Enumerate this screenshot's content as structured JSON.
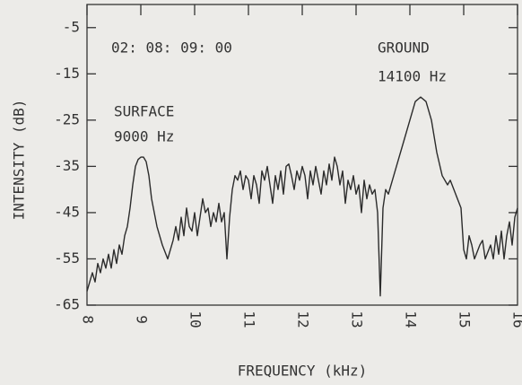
{
  "chart_data": {
    "type": "line",
    "xlabel": "FREQUENCY (kHz)",
    "ylabel": "INTENSITY (dB)",
    "annotations": [
      {
        "text": "02: 08: 09: 00",
        "x": 8.45,
        "y": -9.5
      },
      {
        "text": "GROUND",
        "x": 13.4,
        "y": -9.5
      },
      {
        "text": "14100 Hz",
        "x": 13.4,
        "y": -15.7
      },
      {
        "text": "SURFACE",
        "x": 8.5,
        "y": -23.3
      },
      {
        "text": "9000 Hz",
        "x": 8.5,
        "y": -28.7
      }
    ],
    "xlim": [
      8,
      16
    ],
    "xticks": [
      8,
      9,
      10,
      11,
      12,
      13,
      14,
      15,
      16
    ],
    "ylim": [
      -65,
      0
    ],
    "yticks": [
      -5,
      -15,
      -25,
      -35,
      -45,
      -55,
      -65
    ],
    "color": "#2b2b2b",
    "x": [
      8.0,
      8.05,
      8.1,
      8.15,
      8.2,
      8.25,
      8.3,
      8.35,
      8.4,
      8.45,
      8.5,
      8.55,
      8.6,
      8.65,
      8.7,
      8.75,
      8.8,
      8.85,
      8.9,
      8.95,
      9.0,
      9.05,
      9.1,
      9.15,
      9.2,
      9.3,
      9.4,
      9.5,
      9.6,
      9.65,
      9.7,
      9.75,
      9.8,
      9.85,
      9.9,
      9.95,
      10.0,
      10.05,
      10.1,
      10.15,
      10.2,
      10.25,
      10.3,
      10.35,
      10.4,
      10.45,
      10.5,
      10.55,
      10.6,
      10.65,
      10.7,
      10.75,
      10.8,
      10.85,
      10.9,
      10.95,
      11.0,
      11.05,
      11.1,
      11.15,
      11.2,
      11.25,
      11.3,
      11.35,
      11.4,
      11.45,
      11.5,
      11.55,
      11.6,
      11.65,
      11.7,
      11.75,
      11.8,
      11.85,
      11.9,
      11.95,
      12.0,
      12.05,
      12.1,
      12.15,
      12.2,
      12.25,
      12.3,
      12.35,
      12.4,
      12.45,
      12.5,
      12.55,
      12.6,
      12.65,
      12.7,
      12.75,
      12.8,
      12.85,
      12.9,
      12.95,
      13.0,
      13.05,
      13.1,
      13.15,
      13.2,
      13.25,
      13.3,
      13.35,
      13.4,
      13.45,
      13.5,
      13.55,
      13.6,
      13.7,
      13.8,
      13.9,
      14.0,
      14.1,
      14.2,
      14.3,
      14.4,
      14.5,
      14.6,
      14.7,
      14.75,
      14.85,
      14.95,
      15.0,
      15.05,
      15.1,
      15.15,
      15.2,
      15.3,
      15.35,
      15.4,
      15.5,
      15.55,
      15.6,
      15.65,
      15.7,
      15.75,
      15.8,
      15.85,
      15.9,
      15.95,
      16.0
    ],
    "values": [
      -62,
      -60,
      -58,
      -60,
      -56,
      -58,
      -55,
      -57,
      -54,
      -57,
      -53,
      -56,
      -52,
      -54,
      -50,
      -48,
      -44,
      -39,
      -35,
      -33.5,
      -33,
      -33,
      -34,
      -37,
      -42,
      -48,
      -52,
      -55,
      -51,
      -48,
      -51,
      -46,
      -50,
      -44,
      -48,
      -49,
      -45,
      -50,
      -46,
      -42,
      -45,
      -44,
      -48,
      -45,
      -47,
      -43,
      -47,
      -45,
      -55,
      -46,
      -40,
      -37,
      -38,
      -36,
      -40,
      -37,
      -38,
      -42,
      -37,
      -39,
      -43,
      -36,
      -38,
      -35,
      -39,
      -43,
      -37,
      -40,
      -36,
      -41,
      -35,
      -34.5,
      -37,
      -40,
      -36,
      -38,
      -35,
      -37,
      -42,
      -36,
      -39,
      -35,
      -38,
      -41,
      -36,
      -39,
      -34.5,
      -38,
      -33,
      -35,
      -39,
      -36,
      -43,
      -38,
      -40,
      -37,
      -41,
      -39,
      -45,
      -38,
      -42,
      -39,
      -41,
      -40,
      -45,
      -63,
      -44,
      -40,
      -41,
      -37,
      -33,
      -29,
      -25,
      -21,
      -20,
      -21,
      -25,
      -32,
      -37,
      -39,
      -38,
      -41,
      -44,
      -53,
      -55,
      -50,
      -52,
      -55,
      -52,
      -51,
      -55,
      -52,
      -55,
      -50,
      -54,
      -49,
      -55,
      -50,
      -47,
      -52,
      -46,
      -44
    ]
  }
}
